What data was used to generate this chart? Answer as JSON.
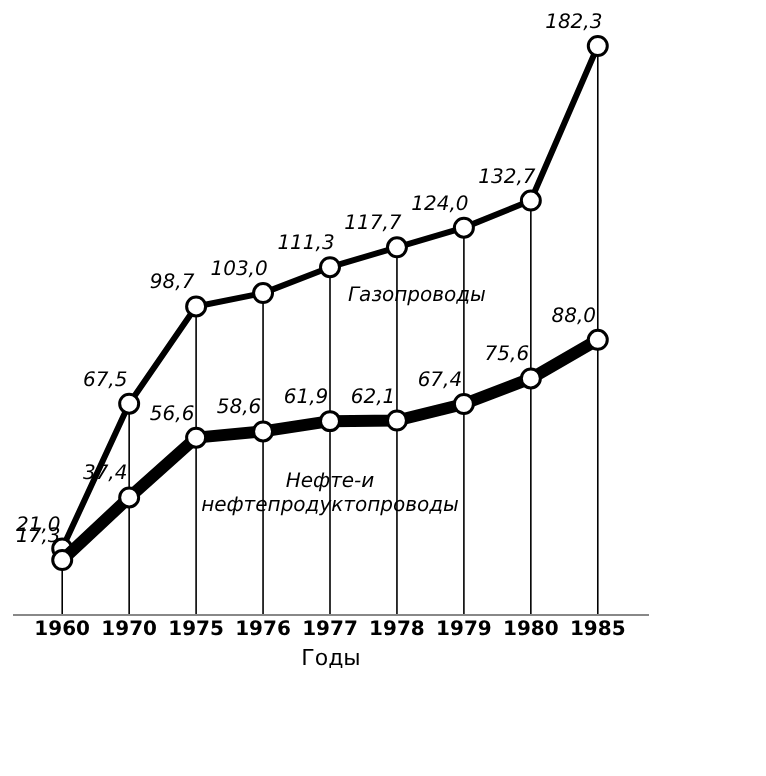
{
  "chart_data": {
    "type": "line",
    "xlabel": "Годы",
    "categories": [
      "1960",
      "1970",
      "1975",
      "1976",
      "1977",
      "1978",
      "1979",
      "1980",
      "1985"
    ],
    "tick_labels": "x",
    "grid": "x",
    "marker": "circle",
    "line_style": "solid",
    "series": [
      {
        "name": "Газопроводы",
        "color": "#000000",
        "values": [
          21.0,
          67.5,
          98.7,
          103.0,
          111.3,
          117.7,
          124.0,
          132.7,
          182.3
        ],
        "value_labels": [
          "21,0",
          "67,5",
          "98,7",
          "103,0",
          "111,3",
          "117,7",
          "124,0",
          "132,7",
          "182,3"
        ]
      },
      {
        "name": "Нефте-и нефтепродуктопроводы",
        "color": "#000000",
        "values": [
          17.3,
          37.4,
          56.6,
          58.6,
          61.9,
          62.1,
          67.4,
          75.6,
          88.0
        ],
        "value_labels": [
          "17,3",
          "37,4",
          "56,6",
          "58,6",
          "61,9",
          "62,1",
          "67,4",
          "75,6",
          "88,0"
        ]
      }
    ]
  }
}
